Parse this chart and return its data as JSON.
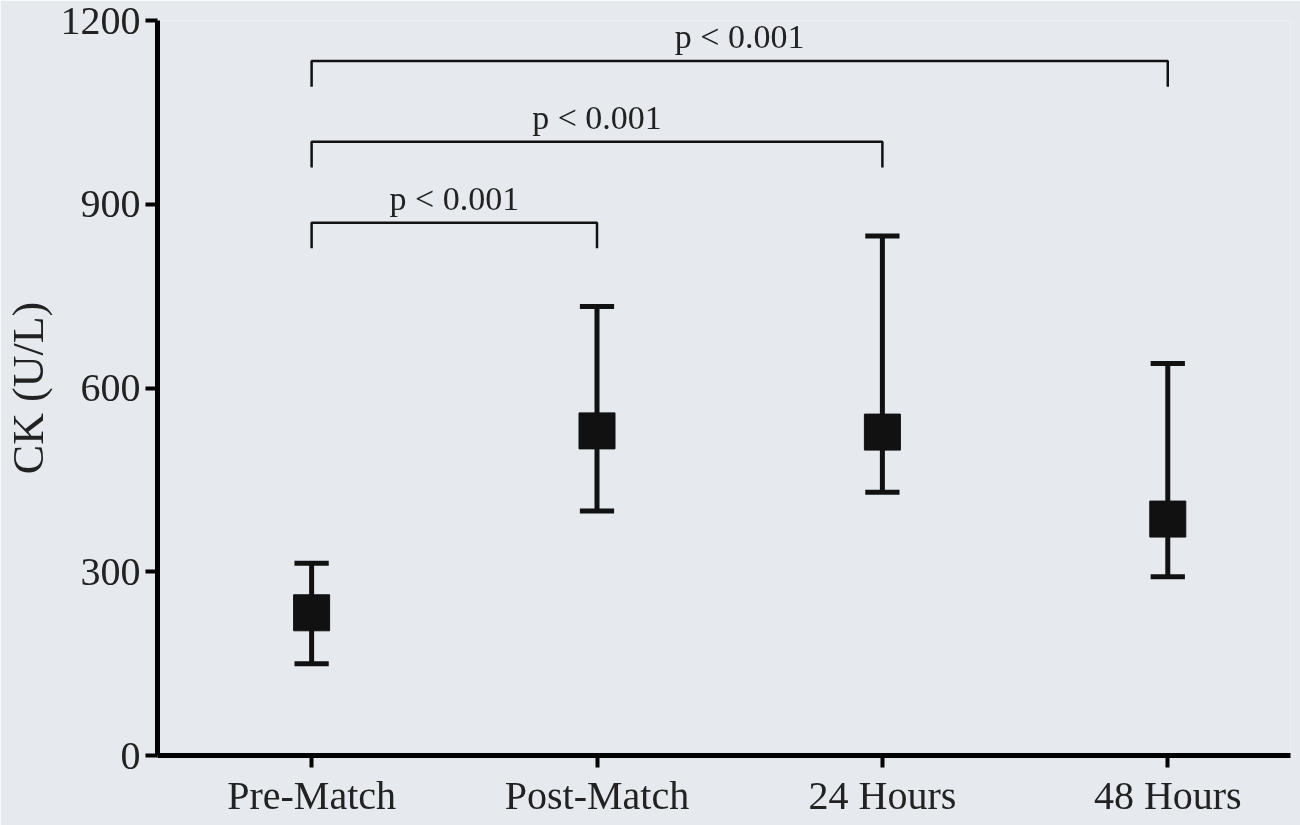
{
  "chart_data": {
    "type": "scatter",
    "ylabel": "CK (U/L)",
    "categories": [
      "Pre-Match",
      "Post-Match",
      "24 Hours",
      "48 Hours"
    ],
    "series": [
      {
        "color": "#111111",
        "values": [
          233,
          530,
          528,
          386
        ],
        "errors": [
          [
            150,
            314
          ],
          [
            399,
            733
          ],
          [
            430,
            848
          ],
          [
            292,
            640
          ]
        ]
      }
    ],
    "ylim": [
      0,
      1200
    ],
    "yticks": [
      0,
      300,
      600,
      900,
      1200
    ],
    "grid": false,
    "marker": "square",
    "annotations": [
      "p < 0.001",
      "p < 0.001",
      "p < 0.001"
    ]
  }
}
